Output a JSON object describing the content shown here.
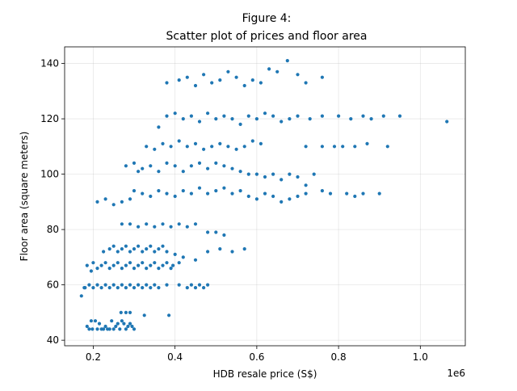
{
  "chart_data": {
    "type": "scatter",
    "title_lines": [
      "Figure 4:",
      "Scatter plot of prices and floor area"
    ],
    "xlabel": "HDB resale price (S$)",
    "ylabel": "Floor area (square meters)",
    "x_offset_text": "1e6",
    "xlim": [
      0.13,
      1.11
    ],
    "ylim": [
      38,
      146
    ],
    "x_ticks": [
      0.2,
      0.4,
      0.6,
      0.8,
      1.0
    ],
    "x_tick_labels": [
      "0.2",
      "0.4",
      "0.6",
      "0.8",
      "1.0"
    ],
    "y_ticks": [
      40,
      60,
      80,
      100,
      120,
      140
    ],
    "y_tick_labels": [
      "40",
      "60",
      "80",
      "100",
      "120",
      "140"
    ],
    "grid": true,
    "marker_color": "#1f77b4",
    "points": [
      [
        0.171,
        56
      ],
      [
        0.178,
        59
      ],
      [
        0.185,
        45
      ],
      [
        0.19,
        44
      ],
      [
        0.195,
        47
      ],
      [
        0.198,
        44
      ],
      [
        0.205,
        47
      ],
      [
        0.21,
        44
      ],
      [
        0.215,
        46
      ],
      [
        0.22,
        44
      ],
      [
        0.225,
        44
      ],
      [
        0.23,
        45
      ],
      [
        0.235,
        44
      ],
      [
        0.24,
        44
      ],
      [
        0.245,
        47
      ],
      [
        0.25,
        44
      ],
      [
        0.255,
        45
      ],
      [
        0.26,
        46
      ],
      [
        0.265,
        44
      ],
      [
        0.27,
        47
      ],
      [
        0.275,
        46
      ],
      [
        0.28,
        44
      ],
      [
        0.285,
        45
      ],
      [
        0.29,
        46
      ],
      [
        0.295,
        45
      ],
      [
        0.3,
        44
      ],
      [
        0.268,
        50
      ],
      [
        0.28,
        50
      ],
      [
        0.29,
        50
      ],
      [
        0.325,
        49
      ],
      [
        0.385,
        49
      ],
      [
        0.18,
        59
      ],
      [
        0.19,
        60
      ],
      [
        0.2,
        59
      ],
      [
        0.21,
        60
      ],
      [
        0.22,
        59
      ],
      [
        0.23,
        60
      ],
      [
        0.24,
        59
      ],
      [
        0.25,
        60
      ],
      [
        0.26,
        59
      ],
      [
        0.27,
        60
      ],
      [
        0.28,
        59
      ],
      [
        0.29,
        60
      ],
      [
        0.3,
        59
      ],
      [
        0.31,
        60
      ],
      [
        0.32,
        59
      ],
      [
        0.33,
        60
      ],
      [
        0.34,
        59
      ],
      [
        0.35,
        60
      ],
      [
        0.36,
        59
      ],
      [
        0.38,
        60
      ],
      [
        0.41,
        60
      ],
      [
        0.43,
        59
      ],
      [
        0.44,
        60
      ],
      [
        0.45,
        59
      ],
      [
        0.46,
        60
      ],
      [
        0.47,
        59
      ],
      [
        0.48,
        60
      ],
      [
        0.185,
        67
      ],
      [
        0.195,
        65
      ],
      [
        0.2,
        68
      ],
      [
        0.21,
        66
      ],
      [
        0.22,
        67
      ],
      [
        0.23,
        68
      ],
      [
        0.24,
        66
      ],
      [
        0.25,
        67
      ],
      [
        0.26,
        68
      ],
      [
        0.27,
        66
      ],
      [
        0.28,
        67
      ],
      [
        0.29,
        68
      ],
      [
        0.3,
        66
      ],
      [
        0.31,
        67
      ],
      [
        0.32,
        68
      ],
      [
        0.33,
        66
      ],
      [
        0.34,
        67
      ],
      [
        0.35,
        68
      ],
      [
        0.36,
        66
      ],
      [
        0.37,
        67
      ],
      [
        0.38,
        68
      ],
      [
        0.39,
        66
      ],
      [
        0.395,
        67
      ],
      [
        0.41,
        68
      ],
      [
        0.225,
        72
      ],
      [
        0.24,
        73
      ],
      [
        0.25,
        74
      ],
      [
        0.26,
        72
      ],
      [
        0.27,
        73
      ],
      [
        0.28,
        74
      ],
      [
        0.29,
        72
      ],
      [
        0.3,
        73
      ],
      [
        0.31,
        74
      ],
      [
        0.32,
        72
      ],
      [
        0.33,
        73
      ],
      [
        0.34,
        74
      ],
      [
        0.35,
        72
      ],
      [
        0.36,
        73
      ],
      [
        0.37,
        74
      ],
      [
        0.38,
        72
      ],
      [
        0.4,
        71
      ],
      [
        0.42,
        70
      ],
      [
        0.45,
        69
      ],
      [
        0.48,
        72
      ],
      [
        0.51,
        73
      ],
      [
        0.54,
        72
      ],
      [
        0.57,
        73
      ],
      [
        0.27,
        82
      ],
      [
        0.29,
        82
      ],
      [
        0.31,
        81
      ],
      [
        0.33,
        82
      ],
      [
        0.35,
        81
      ],
      [
        0.37,
        82
      ],
      [
        0.39,
        81
      ],
      [
        0.41,
        82
      ],
      [
        0.43,
        81
      ],
      [
        0.45,
        82
      ],
      [
        0.48,
        79
      ],
      [
        0.5,
        79
      ],
      [
        0.52,
        78
      ],
      [
        0.21,
        90
      ],
      [
        0.23,
        91
      ],
      [
        0.25,
        89
      ],
      [
        0.27,
        90
      ],
      [
        0.29,
        91
      ],
      [
        0.3,
        94
      ],
      [
        0.32,
        93
      ],
      [
        0.34,
        92
      ],
      [
        0.36,
        94
      ],
      [
        0.38,
        93
      ],
      [
        0.4,
        92
      ],
      [
        0.42,
        94
      ],
      [
        0.44,
        93
      ],
      [
        0.46,
        95
      ],
      [
        0.48,
        93
      ],
      [
        0.5,
        94
      ],
      [
        0.52,
        95
      ],
      [
        0.54,
        93
      ],
      [
        0.56,
        94
      ],
      [
        0.58,
        92
      ],
      [
        0.6,
        91
      ],
      [
        0.62,
        93
      ],
      [
        0.64,
        92
      ],
      [
        0.66,
        90
      ],
      [
        0.68,
        91
      ],
      [
        0.7,
        92
      ],
      [
        0.72,
        93
      ],
      [
        0.76,
        94
      ],
      [
        0.78,
        93
      ],
      [
        0.82,
        93
      ],
      [
        0.84,
        92
      ],
      [
        0.86,
        93
      ],
      [
        0.9,
        93
      ],
      [
        0.28,
        103
      ],
      [
        0.3,
        104
      ],
      [
        0.31,
        101
      ],
      [
        0.32,
        102
      ],
      [
        0.34,
        103
      ],
      [
        0.36,
        101
      ],
      [
        0.38,
        104
      ],
      [
        0.4,
        103
      ],
      [
        0.42,
        101
      ],
      [
        0.44,
        103
      ],
      [
        0.46,
        104
      ],
      [
        0.48,
        102
      ],
      [
        0.5,
        104
      ],
      [
        0.52,
        103
      ],
      [
        0.54,
        102
      ],
      [
        0.56,
        101
      ],
      [
        0.58,
        100
      ],
      [
        0.6,
        100
      ],
      [
        0.62,
        99
      ],
      [
        0.64,
        100
      ],
      [
        0.66,
        98
      ],
      [
        0.68,
        100
      ],
      [
        0.7,
        99
      ],
      [
        0.72,
        96
      ],
      [
        0.74,
        100
      ],
      [
        0.33,
        110
      ],
      [
        0.35,
        109
      ],
      [
        0.37,
        111
      ],
      [
        0.39,
        110
      ],
      [
        0.41,
        112
      ],
      [
        0.43,
        110
      ],
      [
        0.45,
        111
      ],
      [
        0.47,
        109
      ],
      [
        0.49,
        110
      ],
      [
        0.51,
        111
      ],
      [
        0.53,
        110
      ],
      [
        0.55,
        109
      ],
      [
        0.57,
        110
      ],
      [
        0.59,
        112
      ],
      [
        0.61,
        111
      ],
      [
        0.72,
        110
      ],
      [
        0.76,
        110
      ],
      [
        0.79,
        110
      ],
      [
        0.81,
        110
      ],
      [
        0.84,
        110
      ],
      [
        0.87,
        111
      ],
      [
        0.92,
        110
      ],
      [
        0.36,
        117
      ],
      [
        0.38,
        121
      ],
      [
        0.4,
        122
      ],
      [
        0.42,
        120
      ],
      [
        0.44,
        121
      ],
      [
        0.46,
        119
      ],
      [
        0.48,
        122
      ],
      [
        0.5,
        120
      ],
      [
        0.52,
        121
      ],
      [
        0.54,
        120
      ],
      [
        0.56,
        118
      ],
      [
        0.58,
        121
      ],
      [
        0.6,
        120
      ],
      [
        0.62,
        122
      ],
      [
        0.64,
        121
      ],
      [
        0.66,
        119
      ],
      [
        0.68,
        120
      ],
      [
        0.7,
        121
      ],
      [
        0.73,
        120
      ],
      [
        0.76,
        121
      ],
      [
        0.8,
        121
      ],
      [
        0.83,
        120
      ],
      [
        0.86,
        121
      ],
      [
        0.88,
        120
      ],
      [
        0.91,
        121
      ],
      [
        0.95,
        121
      ],
      [
        1.065,
        119
      ],
      [
        0.38,
        133
      ],
      [
        0.41,
        134
      ],
      [
        0.43,
        135
      ],
      [
        0.45,
        132
      ],
      [
        0.47,
        136
      ],
      [
        0.49,
        133
      ],
      [
        0.51,
        134
      ],
      [
        0.53,
        137
      ],
      [
        0.55,
        135
      ],
      [
        0.57,
        132
      ],
      [
        0.59,
        134
      ],
      [
        0.61,
        133
      ],
      [
        0.63,
        138
      ],
      [
        0.65,
        137
      ],
      [
        0.675,
        141
      ],
      [
        0.7,
        136
      ],
      [
        0.72,
        133
      ],
      [
        0.76,
        135
      ]
    ]
  }
}
